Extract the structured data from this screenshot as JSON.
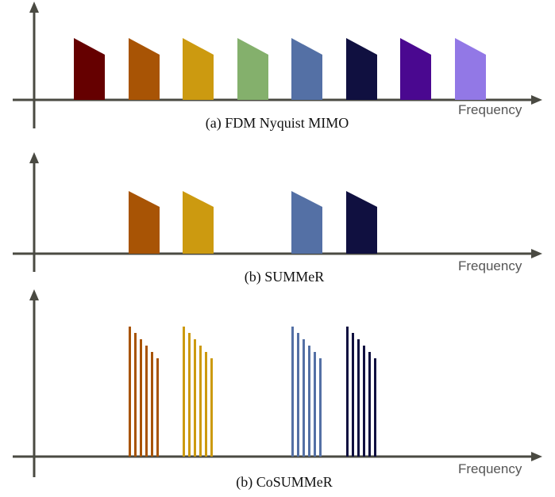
{
  "panels": [
    {
      "id": "a",
      "caption": "(a) FDM Nyquist MIMO",
      "axis_label": "Frequency",
      "style": "block",
      "channels": [
        {
          "color": "#650000"
        },
        {
          "color": "#a85405"
        },
        {
          "color": "#cc9a10"
        },
        {
          "color": "#84b06c"
        },
        {
          "color": "#5470a5"
        },
        {
          "color": "#101040"
        },
        {
          "color": "#4a0890"
        },
        {
          "color": "#9278e6"
        }
      ]
    },
    {
      "id": "b",
      "caption": "(b) SUMMeR",
      "axis_label": "Frequency",
      "style": "block",
      "channels": [
        {
          "color": "#a85405"
        },
        {
          "color": "#cc9a10"
        },
        {
          "color": "#5470a5"
        },
        {
          "color": "#101040"
        }
      ]
    },
    {
      "id": "c",
      "caption": "(b) CoSUMMeR",
      "axis_label": "Frequency",
      "style": "comb",
      "channels": [
        {
          "color": "#a85405"
        },
        {
          "color": "#cc9a10"
        },
        {
          "color": "#5470a5"
        },
        {
          "color": "#101040"
        }
      ]
    }
  ]
}
